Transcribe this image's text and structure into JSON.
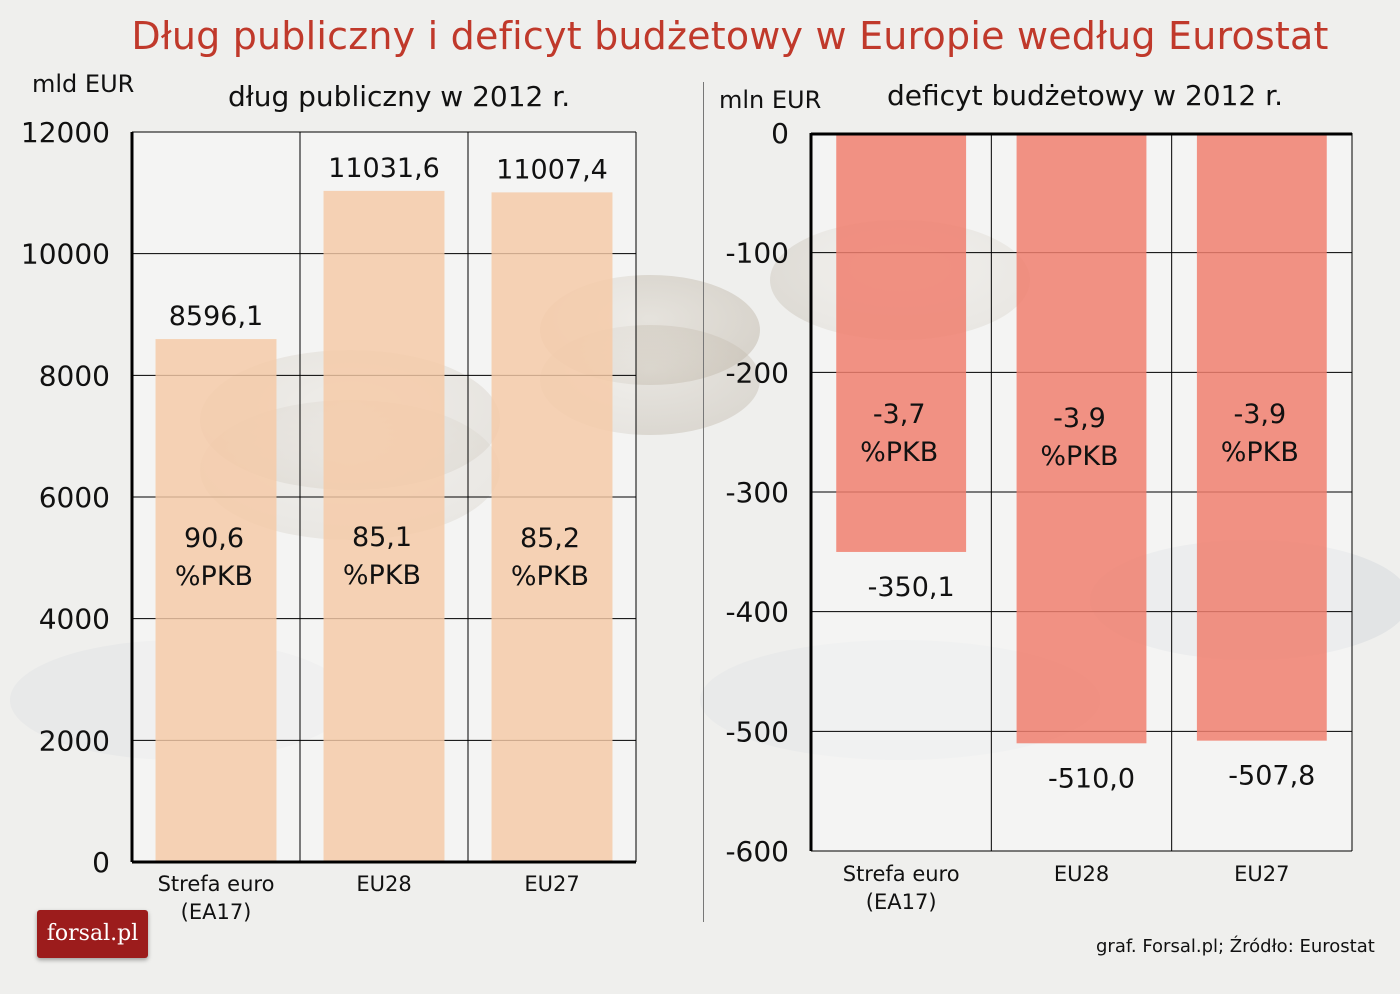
{
  "title": "Dług publiczny i deficyt budżetowy w Europie według Eurostat",
  "logo": "forsal.pl",
  "credit": "graf. Forsal.pl; Źródło: Eurostat",
  "colors": {
    "title": "#c0392b",
    "debt_bar": "#f5c9a6",
    "deficit_bar": "#f07f6e"
  },
  "chart_data": [
    {
      "type": "bar",
      "title": "dług publiczny w 2012 r.",
      "ylabel": "mld EUR",
      "categories": [
        [
          "Strefa euro",
          "(EA17)"
        ],
        [
          "EU28"
        ],
        [
          "EU27"
        ]
      ],
      "values": [
        8596.1,
        11031.6,
        11007.4
      ],
      "value_labels": [
        "8596,1",
        "11031,6",
        "11007,4"
      ],
      "pkb_labels": [
        [
          "90,6",
          "%PKB"
        ],
        [
          "85,1",
          "%PKB"
        ],
        [
          "85,2",
          "%PKB"
        ]
      ],
      "ylim": [
        0,
        12000
      ],
      "yticks": [
        0,
        2000,
        4000,
        6000,
        8000,
        10000,
        12000
      ],
      "grid": true
    },
    {
      "type": "bar",
      "title": "deficyt budżetowy w 2012 r.",
      "ylabel": "mln EUR",
      "categories": [
        [
          "Strefa euro",
          "(EA17)"
        ],
        [
          "EU28"
        ],
        [
          "EU27"
        ]
      ],
      "values": [
        -350.1,
        -510.0,
        -507.8
      ],
      "value_labels": [
        "-350,1",
        "-510,0",
        "-507,8"
      ],
      "pkb_labels": [
        [
          "-3,7",
          "%PKB"
        ],
        [
          "-3,9",
          "%PKB"
        ],
        [
          "-3,9",
          "%PKB"
        ]
      ],
      "ylim": [
        -600,
        0
      ],
      "yticks": [
        0,
        -100,
        -200,
        -300,
        -400,
        -500,
        -600
      ],
      "grid": true
    }
  ]
}
